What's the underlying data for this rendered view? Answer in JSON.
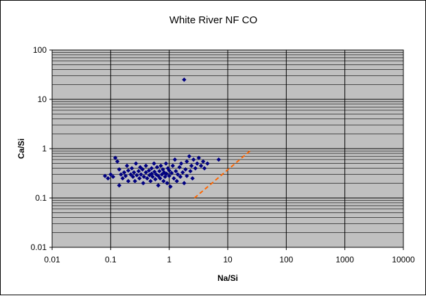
{
  "chart_data": {
    "type": "scatter",
    "title": "White River NF CO",
    "xlabel": "Na/Si",
    "ylabel": "Ca/Si",
    "xscale": "log",
    "yscale": "log",
    "xlim": [
      0.01,
      10000
    ],
    "ylim": [
      0.01,
      100
    ],
    "x_ticks": [
      "0.01",
      "0.1",
      "1",
      "10",
      "100",
      "1000",
      "10000"
    ],
    "y_ticks": [
      "0.01",
      "0.1",
      "1",
      "10",
      "100"
    ],
    "grid": true,
    "legend": "none",
    "colors": {
      "plot_bg": "#c0c0c0",
      "marker": "#000080",
      "reference_line": "#ff6600",
      "grid": "#000000"
    },
    "series": [
      {
        "marker": "diamond",
        "points": [
          [
            1.8,
            25
          ],
          [
            0.08,
            0.28
          ],
          [
            0.09,
            0.25
          ],
          [
            0.1,
            0.3
          ],
          [
            0.11,
            0.27
          ],
          [
            0.12,
            0.65
          ],
          [
            0.13,
            0.55
          ],
          [
            0.14,
            0.38
          ],
          [
            0.14,
            0.18
          ],
          [
            0.15,
            0.3
          ],
          [
            0.16,
            0.25
          ],
          [
            0.17,
            0.33
          ],
          [
            0.18,
            0.28
          ],
          [
            0.19,
            0.45
          ],
          [
            0.2,
            0.36
          ],
          [
            0.2,
            0.22
          ],
          [
            0.22,
            0.3
          ],
          [
            0.23,
            0.4
          ],
          [
            0.24,
            0.27
          ],
          [
            0.25,
            0.33
          ],
          [
            0.26,
            0.22
          ],
          [
            0.27,
            0.5
          ],
          [
            0.28,
            0.29
          ],
          [
            0.3,
            0.35
          ],
          [
            0.31,
            0.25
          ],
          [
            0.32,
            0.42
          ],
          [
            0.33,
            0.3
          ],
          [
            0.35,
            0.38
          ],
          [
            0.36,
            0.2
          ],
          [
            0.37,
            0.27
          ],
          [
            0.4,
            0.33
          ],
          [
            0.4,
            0.45
          ],
          [
            0.42,
            0.25
          ],
          [
            0.45,
            0.36
          ],
          [
            0.46,
            0.29
          ],
          [
            0.48,
            0.22
          ],
          [
            0.5,
            0.4
          ],
          [
            0.5,
            0.31
          ],
          [
            0.52,
            0.27
          ],
          [
            0.55,
            0.5
          ],
          [
            0.56,
            0.34
          ],
          [
            0.58,
            0.24
          ],
          [
            0.6,
            0.3
          ],
          [
            0.62,
            0.42
          ],
          [
            0.65,
            0.28
          ],
          [
            0.65,
            0.18
          ],
          [
            0.68,
            0.35
          ],
          [
            0.7,
            0.25
          ],
          [
            0.72,
            0.45
          ],
          [
            0.75,
            0.3
          ],
          [
            0.78,
            0.38
          ],
          [
            0.8,
            0.22
          ],
          [
            0.82,
            0.33
          ],
          [
            0.85,
            0.27
          ],
          [
            0.88,
            0.5
          ],
          [
            0.9,
            0.31
          ],
          [
            0.92,
            0.2
          ],
          [
            0.95,
            0.4
          ],
          [
            1.0,
            0.28
          ],
          [
            1.0,
            0.36
          ],
          [
            1.05,
            0.17
          ],
          [
            1.1,
            0.32
          ],
          [
            1.15,
            0.45
          ],
          [
            1.2,
            0.25
          ],
          [
            1.25,
            0.6
          ],
          [
            1.3,
            0.35
          ],
          [
            1.35,
            0.22
          ],
          [
            1.4,
            0.3
          ],
          [
            1.5,
            0.42
          ],
          [
            1.55,
            0.27
          ],
          [
            1.6,
            0.5
          ],
          [
            1.7,
            0.33
          ],
          [
            1.8,
            0.2
          ],
          [
            1.9,
            0.38
          ],
          [
            2.0,
            0.28
          ],
          [
            2.0,
            0.55
          ],
          [
            2.2,
            0.7
          ],
          [
            2.3,
            0.35
          ],
          [
            2.4,
            0.45
          ],
          [
            2.5,
            0.25
          ],
          [
            2.6,
            0.6
          ],
          [
            2.8,
            0.4
          ],
          [
            3.0,
            0.5
          ],
          [
            3.2,
            0.65
          ],
          [
            3.5,
            0.45
          ],
          [
            3.8,
            0.55
          ],
          [
            4.0,
            0.4
          ],
          [
            4.5,
            0.5
          ],
          [
            7.0,
            0.6
          ]
        ]
      }
    ],
    "reference_line": {
      "style": "dashed",
      "points": [
        [
          2.7,
          0.1
        ],
        [
          24,
          0.9
        ]
      ]
    }
  }
}
